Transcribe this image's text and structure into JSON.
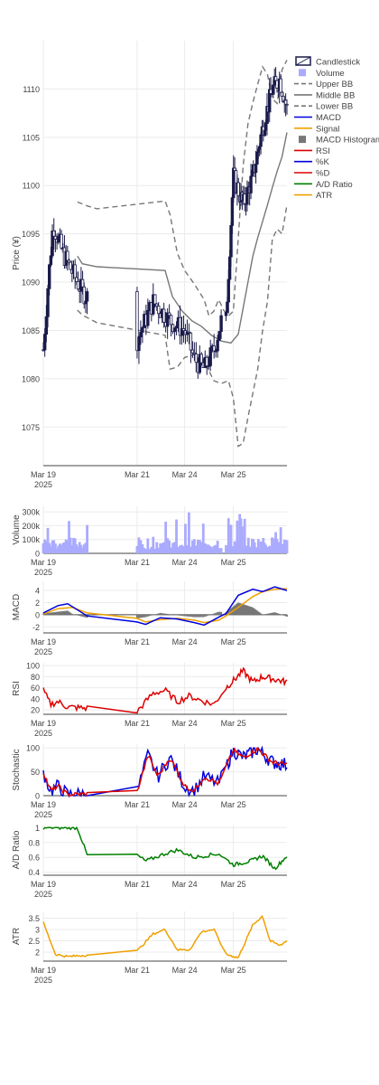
{
  "chart_data": {
    "type": "candlestick-dashboard",
    "x_tick_labels": [
      "Mar 19\n2025",
      "Mar 21",
      "Mar 24",
      "Mar 25"
    ],
    "legend_position": "top-right",
    "legend": [
      {
        "name": "Candlestick",
        "kind": "candle",
        "color": "#1a1a4a"
      },
      {
        "name": "Volume",
        "kind": "square",
        "color": "#aaaaff"
      },
      {
        "name": "Upper BB",
        "kind": "dash",
        "color": "#777777"
      },
      {
        "name": "Middle BB",
        "kind": "line",
        "color": "#777777"
      },
      {
        "name": "Lower BB",
        "kind": "dash",
        "color": "#777777"
      },
      {
        "name": "MACD",
        "kind": "line",
        "color": "#0000dd"
      },
      {
        "name": "Signal",
        "kind": "line",
        "color": "#f0a000"
      },
      {
        "name": "MACD Histogram",
        "kind": "square",
        "color": "#777777"
      },
      {
        "name": "RSI",
        "kind": "line",
        "color": "#dd0000"
      },
      {
        "name": "%K",
        "kind": "line",
        "color": "#0000dd"
      },
      {
        "name": "%D",
        "kind": "line",
        "color": "#dd0000"
      },
      {
        "name": "A/D Ratio",
        "kind": "line",
        "color": "#008000"
      },
      {
        "name": "ATR",
        "kind": "line",
        "color": "#f0a000"
      }
    ],
    "panels": [
      {
        "id": "price",
        "ylabel": "Price (¥)",
        "grid": true,
        "yticks": [
          1075,
          1080,
          1085,
          1090,
          1095,
          1100,
          1105,
          1110
        ],
        "ylim": [
          1071,
          1115
        ],
        "series": [
          {
            "name": "Upper BB",
            "style": "dash",
            "color": "#777777",
            "points": [
              [
                0.14,
                1098.3
              ],
              [
                0.16,
                1098.1
              ],
              [
                0.18,
                1097.9
              ],
              [
                0.22,
                1097.6
              ],
              [
                0.5,
                1098.4
              ],
              [
                0.52,
                1097.0
              ],
              [
                0.55,
                1093.0
              ],
              [
                0.58,
                1091.2
              ],
              [
                0.62,
                1089.8
              ],
              [
                0.66,
                1088.2
              ],
              [
                0.68,
                1086.5
              ],
              [
                0.7,
                1087.0
              ],
              [
                0.72,
                1088.2
              ],
              [
                0.74,
                1087.1
              ],
              [
                0.76,
                1086.5
              ],
              [
                0.78,
                1087.0
              ],
              [
                0.82,
                1102.0
              ],
              [
                0.84,
                1106.4
              ],
              [
                0.86,
                1108.6
              ],
              [
                0.88,
                1110.5
              ],
              [
                0.9,
                1112.3
              ],
              [
                0.92,
                1111.5
              ],
              [
                0.94,
                1109.0
              ],
              [
                0.96,
                1108.5
              ],
              [
                0.98,
                1112.0
              ],
              [
                1.0,
                1113.0
              ]
            ]
          },
          {
            "name": "Middle BB",
            "style": "solid",
            "color": "#777777",
            "points": [
              [
                0.14,
                1092.7
              ],
              [
                0.16,
                1091.9
              ],
              [
                0.22,
                1091.6
              ],
              [
                0.5,
                1091.2
              ],
              [
                0.53,
                1088.5
              ],
              [
                0.57,
                1087.0
              ],
              [
                0.61,
                1086.0
              ],
              [
                0.65,
                1085.4
              ],
              [
                0.69,
                1084.5
              ],
              [
                0.73,
                1083.9
              ],
              [
                0.77,
                1083.7
              ],
              [
                0.8,
                1084.6
              ],
              [
                0.82,
                1087.3
              ],
              [
                0.84,
                1090.0
              ],
              [
                0.86,
                1092.7
              ],
              [
                0.88,
                1094.6
              ],
              [
                0.9,
                1096.3
              ],
              [
                0.92,
                1098.0
              ],
              [
                0.94,
                1099.8
              ],
              [
                0.96,
                1101.5
              ],
              [
                0.98,
                1103.0
              ],
              [
                1.0,
                1105.5
              ]
            ]
          },
          {
            "name": "Lower BB",
            "style": "dash",
            "color": "#777777",
            "points": [
              [
                0.14,
                1087.1
              ],
              [
                0.16,
                1086.6
              ],
              [
                0.22,
                1085.8
              ],
              [
                0.5,
                1084.5
              ],
              [
                0.52,
                1081.0
              ],
              [
                0.55,
                1081.2
              ],
              [
                0.58,
                1082.2
              ],
              [
                0.62,
                1082.5
              ],
              [
                0.66,
                1081.8
              ],
              [
                0.7,
                1079.8
              ],
              [
                0.73,
                1079.5
              ],
              [
                0.76,
                1079.8
              ],
              [
                0.78,
                1078.0
              ],
              [
                0.8,
                1073.0
              ],
              [
                0.82,
                1073.3
              ],
              [
                0.84,
                1076.0
              ],
              [
                0.86,
                1078.5
              ],
              [
                0.88,
                1081.0
              ],
              [
                0.9,
                1085.0
              ],
              [
                0.92,
                1088.0
              ],
              [
                0.94,
                1094.5
              ],
              [
                0.96,
                1095.5
              ],
              [
                0.98,
                1095.0
              ],
              [
                1.0,
                1098.0
              ]
            ]
          }
        ]
      },
      {
        "id": "volume",
        "ylabel": "Volume",
        "grid": true,
        "yticks": [
          0,
          100000,
          200000,
          300000
        ],
        "ytick_labels": [
          "0",
          "100k",
          "200k",
          "300k"
        ],
        "ylim": [
          0,
          340000
        ]
      },
      {
        "id": "macd",
        "ylabel": "MACD",
        "grid": true,
        "yticks": [
          -2,
          0,
          2,
          4
        ],
        "ylim": [
          -3,
          5.5
        ]
      },
      {
        "id": "rsi",
        "ylabel": "RSI",
        "grid": true,
        "yticks": [
          20,
          40,
          60,
          80,
          100
        ],
        "ylim": [
          12,
          105
        ]
      },
      {
        "id": "stoch",
        "ylabel": "Stochastic",
        "grid": true,
        "yticks": [
          0,
          50,
          100
        ],
        "ylim": [
          0,
          108
        ]
      },
      {
        "id": "ad",
        "ylabel": "A/D Ratio",
        "grid": true,
        "yticks": [
          0.4,
          0.6,
          0.8,
          1
        ],
        "ytick_labels": [
          "0.4",
          "0.6",
          "0.8",
          "1"
        ],
        "ylim": [
          0.36,
          1.04
        ]
      },
      {
        "id": "atr",
        "ylabel": "ATR",
        "grid": true,
        "yticks": [
          2,
          2.5,
          3,
          3.5
        ],
        "ylim": [
          1.6,
          3.8
        ]
      }
    ]
  }
}
